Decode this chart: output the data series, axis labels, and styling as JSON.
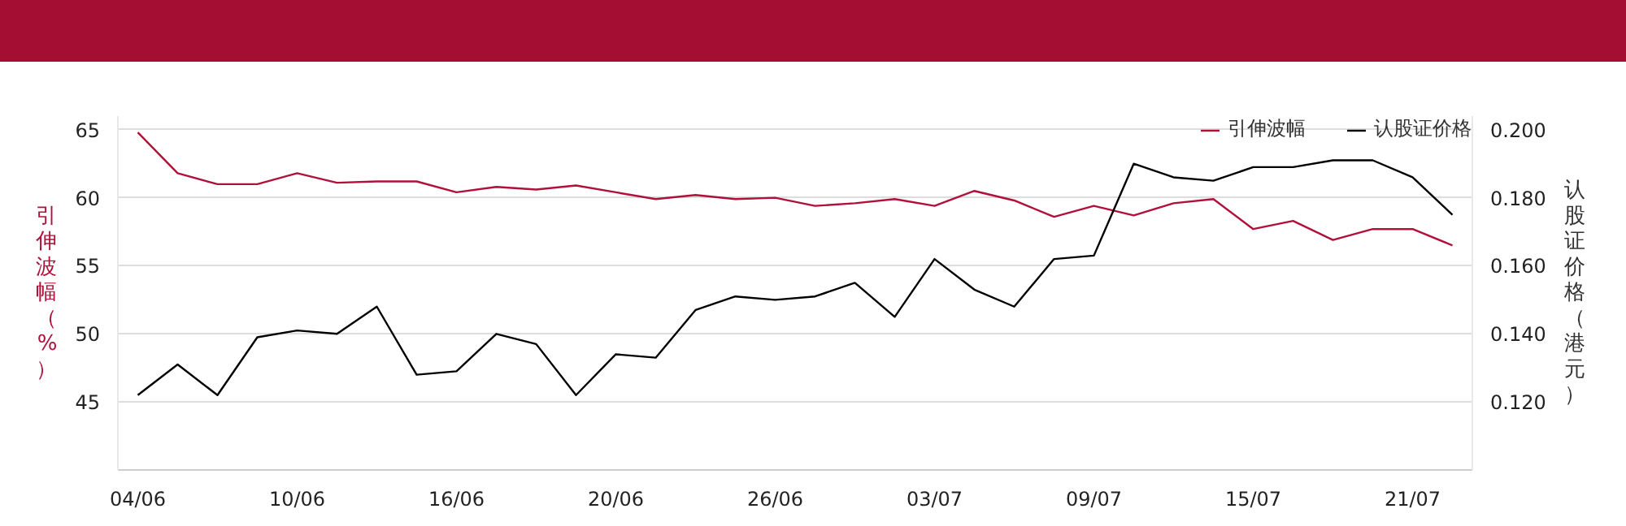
{
  "chart_data": {
    "type": "line",
    "categories": [
      "04/06",
      null,
      null,
      null,
      "10/06",
      null,
      null,
      null,
      "16/06",
      null,
      null,
      null,
      "20/06",
      null,
      null,
      null,
      "26/06",
      null,
      null,
      null,
      "03/07",
      null,
      null,
      null,
      "09/07",
      null,
      null,
      null,
      "15/07",
      null,
      null,
      null,
      "21/07",
      null
    ],
    "series": [
      {
        "name": "引伸波幅",
        "color": "#b0103a",
        "values": [
          64.8,
          61.8,
          61.0,
          61.0,
          61.8,
          61.1,
          61.2,
          61.2,
          60.4,
          60.8,
          60.6,
          60.9,
          60.4,
          59.9,
          60.2,
          59.9,
          60.0,
          59.4,
          59.6,
          59.9,
          59.4,
          60.5,
          59.8,
          58.6,
          59.4,
          58.7,
          59.6,
          59.9,
          57.7,
          58.3,
          56.9,
          57.7,
          57.7,
          56.5
        ]
      },
      {
        "name": "认股证价格",
        "color": "#000000",
        "axis": "y2",
        "values": [
          0.122,
          0.131,
          0.122,
          0.139,
          0.141,
          0.14,
          0.148,
          0.128,
          0.129,
          0.14,
          0.137,
          0.122,
          0.134,
          0.133,
          0.147,
          0.151,
          0.15,
          0.151,
          0.155,
          0.145,
          0.162,
          0.153,
          0.148,
          0.162,
          0.163,
          0.19,
          0.186,
          0.185,
          0.189,
          0.189,
          0.191,
          0.191,
          0.186,
          0.175
        ]
      }
    ],
    "ylabel": "引伸波幅（%）",
    "y2label": "认股证价格（港元）",
    "ylim": [
      40,
      66
    ],
    "yticks": [
      45,
      50,
      55,
      60,
      65
    ],
    "y2lim": [
      0.1,
      0.204
    ],
    "y2ticks": [
      {
        "value": 0.12,
        "label": "0.120"
      },
      {
        "value": 0.14,
        "label": "0.140"
      },
      {
        "value": 0.16,
        "label": "0.160"
      },
      {
        "value": 0.18,
        "label": "0.180"
      },
      {
        "value": 0.2,
        "label": "0.200"
      }
    ],
    "grid": "y",
    "legend": "top right",
    "marker": "none",
    "line_style": "solid"
  }
}
